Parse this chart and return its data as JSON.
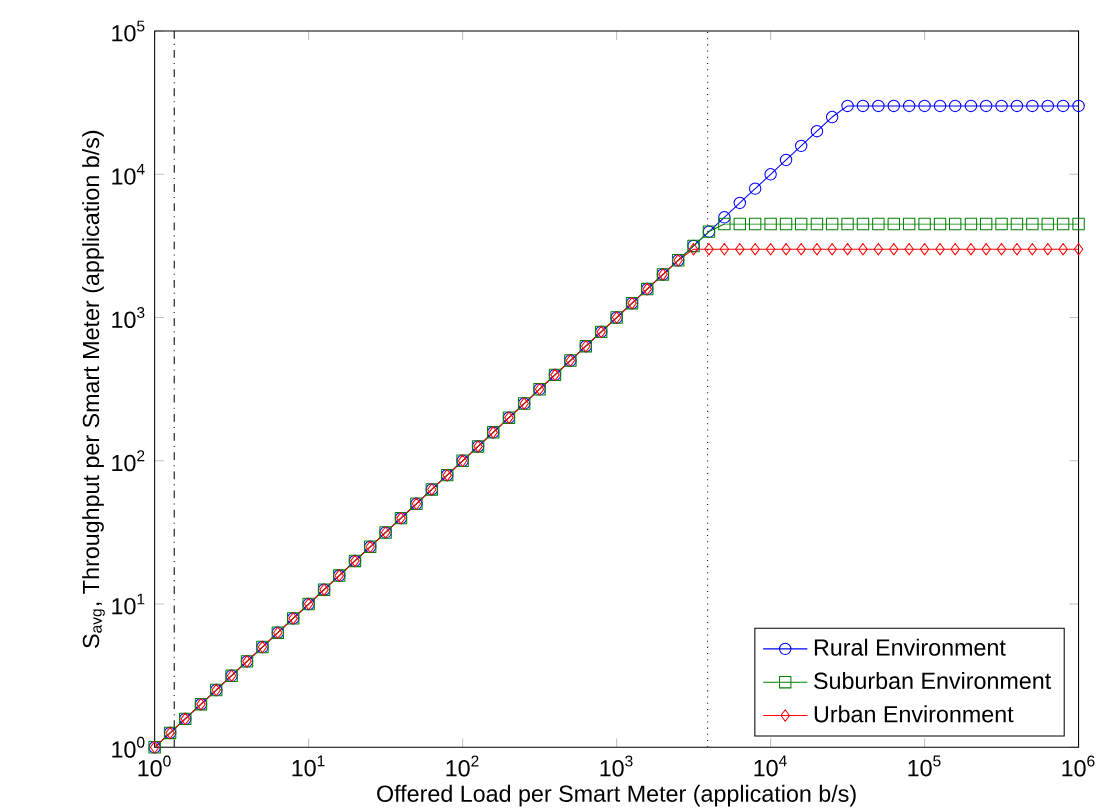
{
  "chart_data": {
    "type": "line",
    "xlabel": "Offered Load per Smart Meter (application b/s)",
    "ylabel": "S$_{avg}$, Throughput per Smart Meter (application b/s)",
    "log": "xy",
    "xlim": [
      1,
      1000000
    ],
    "ylim": [
      1,
      100000
    ],
    "xticks": [
      {
        "value": 1,
        "label": "10$^{0}$"
      },
      {
        "value": 10,
        "label": "10$^{1}$"
      },
      {
        "value": 100,
        "label": "10$^{2}$"
      },
      {
        "value": 1000,
        "label": "10$^{3}$"
      },
      {
        "value": 10000,
        "label": "10$^{4}$"
      },
      {
        "value": 100000,
        "label": "10$^{5}$"
      },
      {
        "value": 1000000,
        "label": "10$^{6}$"
      }
    ],
    "yticks": [
      {
        "value": 1,
        "label": "10$^{0}$"
      },
      {
        "value": 10,
        "label": "10$^{1}$"
      },
      {
        "value": 100,
        "label": "10$^{2}$"
      },
      {
        "value": 1000,
        "label": "10$^{3}$"
      },
      {
        "value": 10000,
        "label": "10$^{4}$"
      },
      {
        "value": 100000,
        "label": "10$^{5}$"
      }
    ],
    "x": [
      1,
      1.26,
      1.58,
      2,
      2.51,
      3.16,
      3.98,
      5.01,
      6.31,
      7.94,
      10,
      12.6,
      15.8,
      20,
      25.1,
      31.6,
      39.8,
      50.1,
      63.1,
      79.4,
      100,
      126,
      158,
      200,
      251,
      316,
      398,
      501,
      631,
      794,
      1000,
      1260,
      1580,
      2000,
      2510,
      3160,
      3980,
      5010,
      6310,
      7940,
      10000,
      12600,
      15800,
      20000,
      25100,
      31600,
      39800,
      50100,
      63100,
      79400,
      100000,
      126000,
      158000,
      200000,
      251000,
      316000,
      398000,
      501000,
      631000,
      794000,
      1000000
    ],
    "series": [
      {
        "name": "Rural Environment",
        "color": "#0000ff",
        "marker": "circle",
        "values": [
          1,
          1.26,
          1.58,
          2,
          2.51,
          3.16,
          3.98,
          5.01,
          6.31,
          7.94,
          10,
          12.6,
          15.8,
          20,
          25.1,
          31.6,
          39.8,
          50.1,
          63.1,
          79.4,
          100,
          126,
          158,
          200,
          251,
          316,
          398,
          501,
          631,
          794,
          1000,
          1260,
          1580,
          2000,
          2510,
          3160,
          3980,
          5010,
          6310,
          7940,
          10000,
          12600,
          15800,
          20000,
          25100,
          30000,
          30000,
          30000,
          30000,
          30000,
          30000,
          30000,
          30000,
          30000,
          30000,
          30000,
          30000,
          30000,
          30000,
          30000,
          30000
        ]
      },
      {
        "name": "Suburban Environment",
        "color": "#008000",
        "marker": "square",
        "values": [
          1,
          1.26,
          1.58,
          2,
          2.51,
          3.16,
          3.98,
          5.01,
          6.31,
          7.94,
          10,
          12.6,
          15.8,
          20,
          25.1,
          31.6,
          39.8,
          50.1,
          63.1,
          79.4,
          100,
          126,
          158,
          200,
          251,
          316,
          398,
          501,
          631,
          794,
          1000,
          1260,
          1580,
          2000,
          2510,
          3160,
          3980,
          4500,
          4500,
          4500,
          4500,
          4500,
          4500,
          4500,
          4500,
          4500,
          4500,
          4500,
          4500,
          4500,
          4500,
          4500,
          4500,
          4500,
          4500,
          4500,
          4500,
          4500,
          4500,
          4500,
          4500
        ]
      },
      {
        "name": "Urban Environment",
        "color": "#ff0000",
        "marker": "diamond",
        "values": [
          1,
          1.26,
          1.58,
          2,
          2.51,
          3.16,
          3.98,
          5.01,
          6.31,
          7.94,
          10,
          12.6,
          15.8,
          20,
          25.1,
          31.6,
          39.8,
          50.1,
          63.1,
          79.4,
          100,
          126,
          158,
          200,
          251,
          316,
          398,
          501,
          631,
          794,
          1000,
          1260,
          1580,
          2000,
          2510,
          3000,
          3000,
          3000,
          3000,
          3000,
          3000,
          3000,
          3000,
          3000,
          3000,
          3000,
          3000,
          3000,
          3000,
          3000,
          3000,
          3000,
          3000,
          3000,
          3000,
          3000,
          3000,
          3000,
          3000,
          3000,
          3000
        ]
      }
    ],
    "ref_lines": [
      {
        "axis": "x",
        "value": 1.34,
        "color": "#000000",
        "line_style": "dashdot"
      },
      {
        "axis": "x",
        "value": 3900,
        "color": "#000000",
        "line_style": "dotted"
      }
    ],
    "legend": "bottom right",
    "grid": false
  }
}
